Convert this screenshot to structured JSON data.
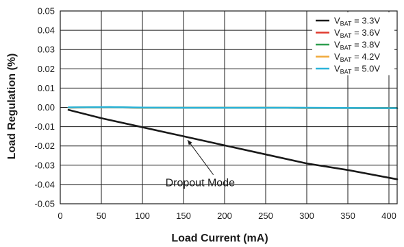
{
  "chart_data": {
    "type": "line",
    "title": "",
    "xlabel": "Load Current (mA)",
    "ylabel": "Load Regulation (%)",
    "xlim": [
      0,
      410
    ],
    "ylim": [
      -0.05,
      0.05
    ],
    "x_ticks": [
      0,
      50,
      100,
      150,
      200,
      250,
      300,
      350,
      400
    ],
    "y_ticks": [
      -0.05,
      -0.04,
      -0.03,
      -0.02,
      -0.01,
      0.0,
      0.01,
      0.02,
      0.03,
      0.04,
      0.05
    ],
    "x_tick_labels": [
      "0",
      "50",
      "100",
      "150",
      "200",
      "250",
      "300",
      "350",
      "400"
    ],
    "y_tick_labels": [
      "-0.05",
      "-0.04",
      "-0.03",
      "-0.02",
      "-0.01",
      "0.00",
      "0.01",
      "0.02",
      "0.03",
      "0.04",
      "0.05"
    ],
    "grid": true,
    "legend_position": "top-right",
    "series": [
      {
        "name_main": "V",
        "name_sub": "BAT",
        "name_rest": " = 3.3V",
        "color": "#1a1a1a",
        "x": [
          10,
          50,
          100,
          150,
          200,
          250,
          300,
          350,
          410
        ],
        "y": [
          -0.0013,
          -0.0056,
          -0.0103,
          -0.015,
          -0.0197,
          -0.0244,
          -0.0291,
          -0.0325,
          -0.0373
        ]
      },
      {
        "name_main": "V",
        "name_sub": "BAT",
        "name_rest": " = 3.6V",
        "color": "#e03a2e",
        "x": [
          10,
          60,
          100,
          150,
          200,
          250,
          300,
          350,
          410
        ],
        "y": [
          -0.0001,
          0.0,
          -0.0002,
          -0.0002,
          -0.0002,
          -0.0002,
          -0.0003,
          -0.0003,
          -0.0004
        ]
      },
      {
        "name_main": "V",
        "name_sub": "BAT",
        "name_rest": " = 3.8V",
        "color": "#2e9e4f",
        "x": [
          10,
          60,
          100,
          150,
          200,
          250,
          300,
          350,
          410
        ],
        "y": [
          -0.0001,
          0.0001,
          -0.0002,
          -0.0002,
          -0.0002,
          -0.0002,
          -0.0003,
          -0.0003,
          -0.0004
        ]
      },
      {
        "name_main": "V",
        "name_sub": "BAT",
        "name_rest": " = 4.2V",
        "color": "#f0a83a",
        "x": [
          10,
          60,
          100,
          150,
          200,
          250,
          300,
          350,
          410
        ],
        "y": [
          -0.0001,
          0.0,
          -0.0002,
          -0.0002,
          -0.0002,
          -0.0002,
          -0.0003,
          -0.0003,
          -0.0004
        ]
      },
      {
        "name_main": "V",
        "name_sub": "BAT",
        "name_rest": " = 5.0V",
        "color": "#2bb3d9",
        "x": [
          10,
          60,
          100,
          150,
          200,
          250,
          300,
          350,
          410
        ],
        "y": [
          0.0,
          0.0001,
          -0.0001,
          -0.0002,
          -0.0002,
          -0.0002,
          -0.0002,
          -0.0003,
          -0.0004
        ]
      }
    ],
    "annotations": [
      {
        "text": "Dropout Mode",
        "text_x": 128,
        "text_y": -0.041,
        "arrow_to_x": 150,
        "arrow_to_y": -0.0155
      }
    ]
  }
}
